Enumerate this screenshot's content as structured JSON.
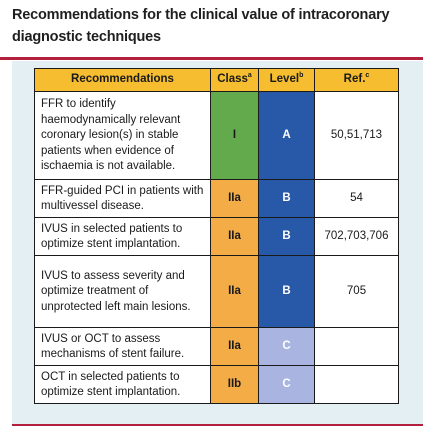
{
  "title": "Recommendations for the clinical value of intracoronary diagnostic techniques",
  "colors": {
    "accent_rule": "#b2203e",
    "header_bg": "#f5bd2f",
    "class_I": "#63aa4d",
    "class_IIa_IIb": "#f4ac47",
    "level_A_B": "#2859a8",
    "level_C": "#a9b5e0",
    "panel_bg": "#e3eff2"
  },
  "table": {
    "headers": {
      "recommendations": "Recommendations",
      "class": "Class",
      "class_note": "a",
      "level": "Level",
      "level_note": "b",
      "ref": "Ref.",
      "ref_note": "c"
    },
    "rows": [
      {
        "recommendation": "FFR to identify haemodynamically relevant coronary lesion(s) in stable patients when evidence of ischaemia is not available.",
        "class": "I",
        "level": "A",
        "ref": "50,51,713"
      },
      {
        "recommendation": "FFR-guided PCI in patients with multivessel disease.",
        "class": "IIa",
        "level": "B",
        "ref": "54"
      },
      {
        "recommendation": "IVUS in selected patients to optimize stent implantation.",
        "class": "IIa",
        "level": "B",
        "ref": "702,703,706"
      },
      {
        "recommendation": "IVUS to assess severity and optimize treatment of unprotected left main lesions.",
        "class": "IIa",
        "level": "B",
        "ref": "705"
      },
      {
        "recommendation": "IVUS or OCT to assess mechanisms of stent failure.",
        "class": "IIa",
        "level": "C",
        "ref": ""
      },
      {
        "recommendation": "OCT in selected patients to optimize stent implantation.",
        "class": "IIb",
        "level": "C",
        "ref": ""
      }
    ]
  }
}
